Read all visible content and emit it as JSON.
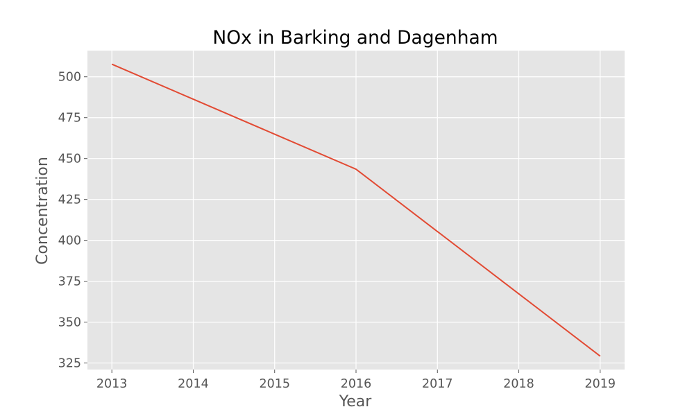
{
  "chart_data": {
    "type": "line",
    "title": "NOx in Barking and Dagenham",
    "xlabel": "Year",
    "ylabel": "Concentration",
    "x": [
      2013,
      2014,
      2015,
      2016,
      2017,
      2018,
      2019
    ],
    "x_ticks": [
      "2013",
      "2014",
      "2015",
      "2016",
      "2017",
      "2018",
      "2019"
    ],
    "y_ticks": [
      "325",
      "350",
      "375",
      "400",
      "425",
      "450",
      "475",
      "500"
    ],
    "xlim": [
      2012.7,
      2019.3
    ],
    "ylim": [
      321,
      516
    ],
    "series": [
      {
        "values": [
          507.7,
          486.3,
          464.9,
          443.5,
          405.4,
          367.3,
          329.2
        ],
        "color": "#e24a33"
      }
    ],
    "grid": true,
    "legend": "none",
    "colors": {
      "plot_background": "#e5e5e5",
      "grid": "#ffffff",
      "tick_text": "#555555"
    }
  }
}
